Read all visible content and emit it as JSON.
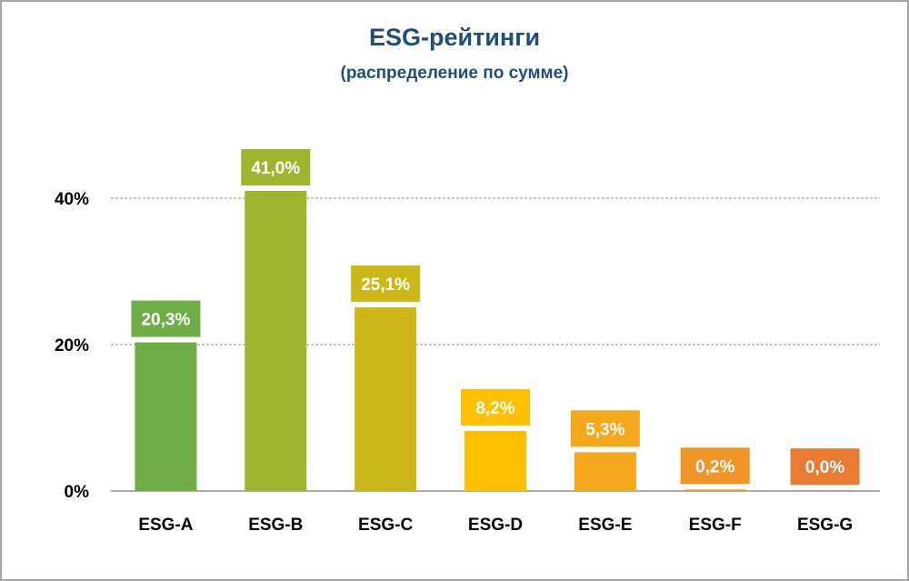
{
  "chart_data": {
    "type": "bar",
    "title": "ESG-рейтинги",
    "subtitle": "(распределение по сумме)",
    "categories": [
      "ESG-A",
      "ESG-B",
      "ESG-C",
      "ESG-D",
      "ESG-E",
      "ESG-F",
      "ESG-G"
    ],
    "values": [
      20.3,
      41.0,
      25.1,
      8.2,
      5.3,
      0.2,
      0.0
    ],
    "data_labels": [
      "20,3%",
      "41,0%",
      "25,1%",
      "8,2%",
      "5,3%",
      "0,2%",
      "0,0%"
    ],
    "colors": [
      "#70ad47",
      "#9fb530",
      "#cdb81a",
      "#ffc000",
      "#f5a81c",
      "#f09528",
      "#e87b31"
    ],
    "xlabel": "",
    "ylabel": "",
    "ylim": [
      0,
      40
    ],
    "yticks": [
      0,
      20,
      40
    ],
    "ytick_labels": [
      "0%",
      "20%",
      "40%"
    ],
    "grid": true,
    "legend": "none"
  }
}
